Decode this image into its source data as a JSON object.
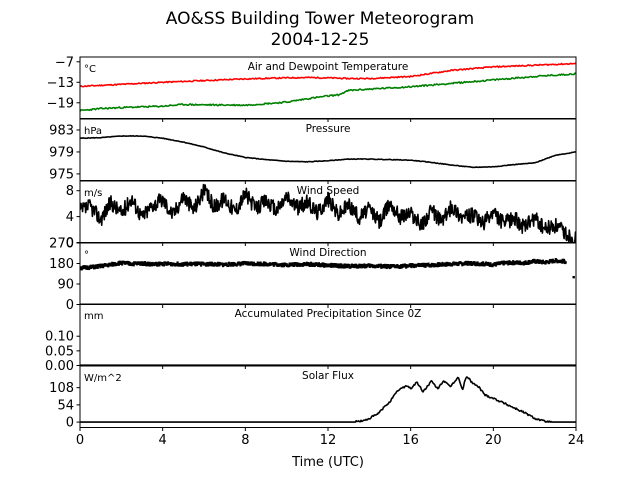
{
  "title_line1": "AO&SS Building Tower Meteorogram",
  "title_line2": "2004-12-25",
  "xlabel": "Time (UTC)",
  "chart_data": [
    {
      "type": "line",
      "title": "Air and Dewpoint Temperature",
      "ylabel": "°C",
      "xlim": [
        0,
        24
      ],
      "ylim": [
        -23.6,
        -5.6
      ],
      "yticks": [
        "-7",
        "-13",
        "-19"
      ],
      "ytick_values": [
        -7,
        -13,
        -19
      ],
      "xticks": [
        "0",
        "4",
        "8",
        "12",
        "16",
        "20",
        "24"
      ],
      "colors": {
        "air": "#ff0000",
        "dewpoint": "#008000"
      },
      "series": [
        {
          "key": "air",
          "x": [
            0,
            2,
            4,
            6,
            8,
            10,
            11,
            12,
            13,
            14,
            16,
            17,
            18,
            20,
            22,
            24
          ],
          "y": [
            -14.2,
            -13.6,
            -13.0,
            -12.5,
            -12.0,
            -11.7,
            -11.6,
            -11.7,
            -11.9,
            -11.9,
            -11.3,
            -10.4,
            -9.5,
            -8.5,
            -8.0,
            -7.5
          ]
        },
        {
          "key": "dewpoint",
          "x": [
            0,
            1,
            2,
            4,
            5,
            6,
            8,
            10,
            11,
            12,
            12.5,
            13,
            14,
            16,
            18,
            20,
            22,
            24
          ],
          "y": [
            -21.3,
            -20.7,
            -20.4,
            -20.0,
            -19.5,
            -19.6,
            -19.7,
            -18.8,
            -17.8,
            -17.0,
            -16.7,
            -15.4,
            -15.0,
            -14.3,
            -13.3,
            -12.3,
            -11.3,
            -10.5
          ]
        }
      ]
    },
    {
      "type": "line",
      "title": "Pressure",
      "ylabel": "hPa",
      "xlim": [
        0,
        24
      ],
      "ylim": [
        973.8,
        985.0
      ],
      "yticks": [
        "983",
        "979",
        "975"
      ],
      "ytick_values": [
        983,
        979,
        975
      ],
      "series": [
        {
          "key": "pressure",
          "x": [
            0,
            1,
            2,
            3,
            4,
            5,
            6,
            7,
            8,
            9,
            10,
            11,
            12,
            13,
            14,
            15,
            16,
            17,
            18,
            19,
            20,
            21,
            22,
            23,
            24
          ],
          "y": [
            981.5,
            981.6,
            981.9,
            981.9,
            981.5,
            980.8,
            979.9,
            978.8,
            978.0,
            977.6,
            977.3,
            977.2,
            977.4,
            977.7,
            977.7,
            977.6,
            977.5,
            977.1,
            976.6,
            976.2,
            976.3,
            976.7,
            977.0,
            978.4,
            979.0
          ]
        }
      ]
    },
    {
      "type": "line",
      "title": "Wind Speed",
      "ylabel": "m/s",
      "xlim": [
        0,
        24
      ],
      "ylim": [
        0,
        9.5
      ],
      "yticks": [
        "8",
        "4",
        "0"
      ],
      "ytick_values": [
        8,
        4,
        0
      ],
      "series": [
        {
          "key": "wind_speed",
          "x": [
            0,
            0.5,
            1,
            1.5,
            2,
            2.5,
            3,
            3.5,
            4,
            4.5,
            5,
            5.5,
            6,
            6.5,
            7,
            7.5,
            8,
            8.5,
            9,
            9.5,
            10,
            10.5,
            11,
            11.5,
            12,
            12.5,
            13,
            13.5,
            14,
            14.5,
            15,
            15.5,
            16,
            16.5,
            17,
            17.5,
            18,
            18.5,
            19,
            19.5,
            20,
            20.5,
            21,
            21.5,
            22,
            22.5,
            23,
            23.5,
            24
          ],
          "y": [
            4.8,
            5.6,
            3.6,
            6.2,
            4.5,
            6.8,
            3.9,
            5.8,
            6.6,
            4.3,
            7.2,
            5.1,
            8.0,
            5.5,
            6.9,
            4.8,
            7.6,
            5.2,
            6.5,
            4.9,
            7.1,
            5.4,
            6.2,
            4.6,
            6.8,
            4.3,
            5.9,
            3.9,
            5.2,
            3.2,
            6.1,
            4.0,
            4.6,
            2.6,
            4.9,
            3.3,
            5.6,
            3.9,
            4.2,
            2.9,
            4.6,
            3.0,
            3.8,
            2.3,
            3.7,
            2.0,
            2.6,
            1.4,
            0.5
          ]
        }
      ]
    },
    {
      "type": "scatter",
      "title": "Wind Direction",
      "ylabel": "°",
      "xlim": [
        0,
        24
      ],
      "ylim": [
        0,
        270
      ],
      "yticks": [
        "270",
        "180",
        "90",
        "0"
      ],
      "ytick_values": [
        270,
        180,
        90,
        0
      ],
      "series": [
        {
          "key": "wind_direction",
          "x": [
            0,
            0.5,
            1,
            1.5,
            2,
            2.5,
            3,
            3.5,
            4,
            5,
            6,
            7,
            8,
            9,
            10,
            11,
            12,
            13,
            14,
            15,
            16,
            17,
            18,
            19,
            20,
            20.5,
            21,
            21.5,
            22,
            22.5,
            23,
            23.5,
            24
          ],
          "y": [
            160,
            163,
            168,
            175,
            183,
            178,
            181,
            176,
            179,
            177,
            178,
            175,
            180,
            178,
            174,
            177,
            172,
            168,
            170,
            166,
            170,
            173,
            178,
            181,
            175,
            182,
            184,
            183,
            190,
            185,
            193,
            188,
            120
          ]
        }
      ]
    },
    {
      "type": "line",
      "title": "Accumulated Precipitation Since 0Z",
      "ylabel": "mm",
      "xlim": [
        0,
        24
      ],
      "ylim": [
        0,
        0.21
      ],
      "yticks": [
        "0.10",
        "0.05",
        "0.00"
      ],
      "ytick_values": [
        0.1,
        0.05,
        0.0
      ],
      "series": [
        {
          "key": "precip",
          "x": [
            0,
            24
          ],
          "y": [
            0,
            0
          ]
        }
      ]
    },
    {
      "type": "line",
      "title": "Solar Flux",
      "ylabel": "W/m^2",
      "xlim": [
        0,
        24
      ],
      "ylim": [
        -17,
        176
      ],
      "yticks": [
        "108",
        "54",
        "0"
      ],
      "ytick_values": [
        108,
        54,
        0
      ],
      "series": [
        {
          "key": "solar",
          "x": [
            0,
            13.2,
            13.8,
            14.4,
            15.0,
            15.4,
            15.8,
            16.0,
            16.3,
            16.6,
            17.0,
            17.3,
            17.6,
            17.9,
            18.1,
            18.3,
            18.5,
            18.7,
            19.0,
            19.3,
            19.6,
            20.0,
            20.5,
            21.0,
            21.5,
            22.0,
            22.5,
            22.8,
            24
          ],
          "y": [
            0,
            0,
            5,
            25,
            65,
            100,
            115,
            105,
            125,
            95,
            128,
            105,
            130,
            110,
            125,
            142,
            100,
            145,
            122,
            110,
            85,
            75,
            60,
            45,
            30,
            12,
            2,
            0,
            0
          ]
        }
      ]
    }
  ]
}
